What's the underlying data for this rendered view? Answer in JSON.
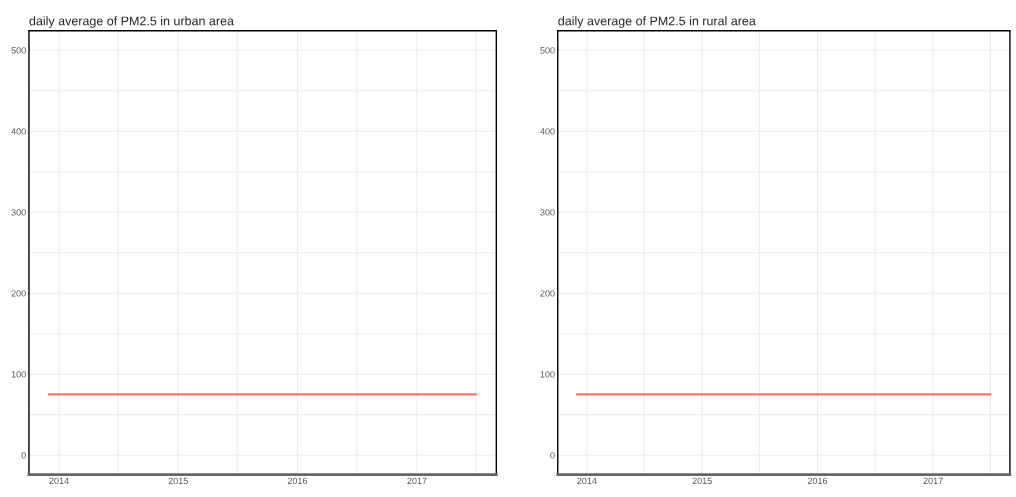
{
  "chart_data": [
    {
      "type": "line",
      "title": "daily average of PM2.5 in urban area",
      "x": [
        "2013-12-01",
        "2017-07-01"
      ],
      "series": [
        {
          "color": "#f8766d",
          "values": [
            75,
            75
          ]
        }
      ],
      "xlim": [
        "2013-10-01",
        "2017-09-01"
      ],
      "ylim": [
        -24,
        524
      ],
      "xticks": [
        "2014",
        {
          "value": "2014-07",
          "label": null
        },
        "2015",
        {
          "value": "2015-07",
          "label": null
        },
        "2016",
        {
          "value": "2016-07",
          "label": null
        },
        "2017",
        {
          "value": "2017-07",
          "label": null
        }
      ],
      "yticks": [
        0,
        {
          "value": 50,
          "label": null
        },
        100,
        {
          "value": 150,
          "label": null
        },
        200,
        {
          "value": 250,
          "label": null
        },
        300,
        {
          "value": 350,
          "label": null
        },
        400,
        {
          "value": 450,
          "label": null
        },
        500
      ],
      "grid": true
    },
    {
      "type": "line",
      "title": "daily average of PM2.5 in rural area",
      "x": [
        "2013-12-01",
        "2017-07-01"
      ],
      "series": [
        {
          "color": "#f8766d",
          "values": [
            75,
            75
          ]
        }
      ],
      "xlim": [
        "2013-10-01",
        "2017-09-01"
      ],
      "ylim": [
        -24,
        524
      ],
      "xticks": [
        "2014",
        {
          "value": "2014-07",
          "label": null
        },
        "2015",
        {
          "value": "2015-07",
          "label": null
        },
        "2016",
        {
          "value": "2016-07",
          "label": null
        },
        "2017",
        {
          "value": "2017-07",
          "label": null
        }
      ],
      "yticks": [
        0,
        {
          "value": 50,
          "label": null
        },
        100,
        {
          "value": 150,
          "label": null
        },
        200,
        {
          "value": 250,
          "label": null
        },
        300,
        {
          "value": 350,
          "label": null
        },
        400,
        {
          "value": 450,
          "label": null
        },
        500
      ],
      "grid": true
    }
  ]
}
